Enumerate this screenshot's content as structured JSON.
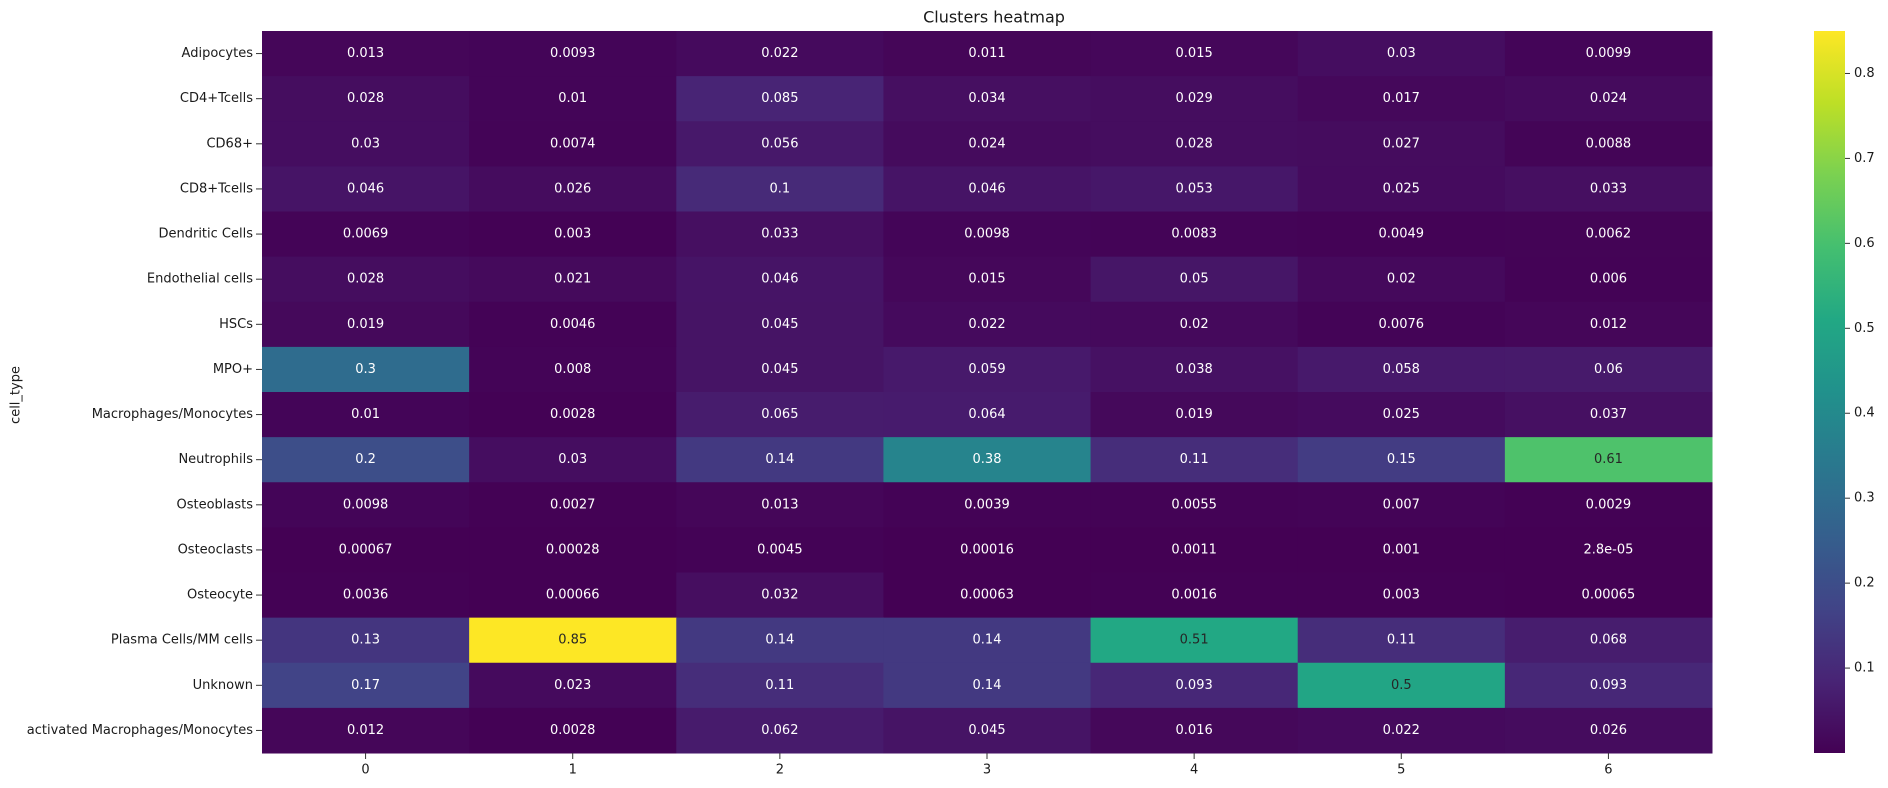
{
  "chart_data": {
    "type": "heatmap",
    "title": "Clusters heatmap",
    "ylabel": "cell_type",
    "xlabel": "",
    "x": [
      "0",
      "1",
      "2",
      "3",
      "4",
      "5",
      "6"
    ],
    "y": [
      "Adipocytes",
      "CD4+Tcells",
      "CD68+",
      "CD8+Tcells",
      "Dendritic Cells",
      "Endothelial cells",
      "HSCs",
      "MPO+",
      "Macrophages/Monocytes",
      "Neutrophils",
      "Osteoblasts",
      "Osteoclasts",
      "Osteocyte",
      "Plasma Cells/MM cells",
      "Unknown",
      "activated Macrophages/Monocytes"
    ],
    "values": [
      [
        0.013,
        0.0093,
        0.022,
        0.011,
        0.015,
        0.03,
        0.0099
      ],
      [
        0.028,
        0.01,
        0.085,
        0.034,
        0.029,
        0.017,
        0.024
      ],
      [
        0.03,
        0.0074,
        0.056,
        0.024,
        0.028,
        0.027,
        0.0088
      ],
      [
        0.046,
        0.026,
        0.1,
        0.046,
        0.053,
        0.025,
        0.033
      ],
      [
        0.0069,
        0.003,
        0.033,
        0.0098,
        0.0083,
        0.0049,
        0.0062
      ],
      [
        0.028,
        0.021,
        0.046,
        0.015,
        0.05,
        0.02,
        0.006
      ],
      [
        0.019,
        0.0046,
        0.045,
        0.022,
        0.02,
        0.0076,
        0.012
      ],
      [
        0.3,
        0.008,
        0.045,
        0.059,
        0.038,
        0.058,
        0.06
      ],
      [
        0.01,
        0.0028,
        0.065,
        0.064,
        0.019,
        0.025,
        0.037
      ],
      [
        0.2,
        0.03,
        0.14,
        0.38,
        0.11,
        0.15,
        0.61
      ],
      [
        0.0098,
        0.0027,
        0.013,
        0.0039,
        0.0055,
        0.007,
        0.0029
      ],
      [
        0.00067,
        0.00028,
        0.0045,
        0.00016,
        0.0011,
        0.001,
        2.8e-05
      ],
      [
        0.0036,
        0.00066,
        0.032,
        0.00063,
        0.0016,
        0.003,
        0.00065
      ],
      [
        0.13,
        0.85,
        0.14,
        0.14,
        0.51,
        0.11,
        0.068
      ],
      [
        0.17,
        0.023,
        0.11,
        0.14,
        0.093,
        0.5,
        0.093
      ],
      [
        0.012,
        0.0028,
        0.062,
        0.045,
        0.016,
        0.022,
        0.026
      ]
    ],
    "labels": [
      [
        "0.013",
        "0.0093",
        "0.022",
        "0.011",
        "0.015",
        "0.03",
        "0.0099"
      ],
      [
        "0.028",
        "0.01",
        "0.085",
        "0.034",
        "0.029",
        "0.017",
        "0.024"
      ],
      [
        "0.03",
        "0.0074",
        "0.056",
        "0.024",
        "0.028",
        "0.027",
        "0.0088"
      ],
      [
        "0.046",
        "0.026",
        "0.1",
        "0.046",
        "0.053",
        "0.025",
        "0.033"
      ],
      [
        "0.0069",
        "0.003",
        "0.033",
        "0.0098",
        "0.0083",
        "0.0049",
        "0.0062"
      ],
      [
        "0.028",
        "0.021",
        "0.046",
        "0.015",
        "0.05",
        "0.02",
        "0.006"
      ],
      [
        "0.019",
        "0.0046",
        "0.045",
        "0.022",
        "0.02",
        "0.0076",
        "0.012"
      ],
      [
        "0.3",
        "0.008",
        "0.045",
        "0.059",
        "0.038",
        "0.058",
        "0.06"
      ],
      [
        "0.01",
        "0.0028",
        "0.065",
        "0.064",
        "0.019",
        "0.025",
        "0.037"
      ],
      [
        "0.2",
        "0.03",
        "0.14",
        "0.38",
        "0.11",
        "0.15",
        "0.61"
      ],
      [
        "0.0098",
        "0.0027",
        "0.013",
        "0.0039",
        "0.0055",
        "0.007",
        "0.0029"
      ],
      [
        "0.00067",
        "0.00028",
        "0.0045",
        "0.00016",
        "0.0011",
        "0.001",
        "2.8e-05"
      ],
      [
        "0.0036",
        "0.00066",
        "0.032",
        "0.00063",
        "0.0016",
        "0.003",
        "0.00065"
      ],
      [
        "0.13",
        "0.85",
        "0.14",
        "0.14",
        "0.51",
        "0.11",
        "0.068"
      ],
      [
        "0.17",
        "0.023",
        "0.11",
        "0.14",
        "0.093",
        "0.5",
        "0.093"
      ],
      [
        "0.012",
        "0.0028",
        "0.062",
        "0.045",
        "0.016",
        "0.022",
        "0.026"
      ]
    ],
    "colormap": "viridis",
    "vmin": 2.8e-05,
    "vmax": 0.85,
    "colorbar": {
      "ticks": [
        0.1,
        0.2,
        0.3,
        0.4,
        0.5,
        0.6,
        0.7,
        0.8
      ],
      "tick_labels": [
        "0.1",
        "0.2",
        "0.3",
        "0.4",
        "0.5",
        "0.6",
        "0.7",
        "0.8"
      ]
    },
    "grid": false,
    "legend": "colorbar-right"
  }
}
